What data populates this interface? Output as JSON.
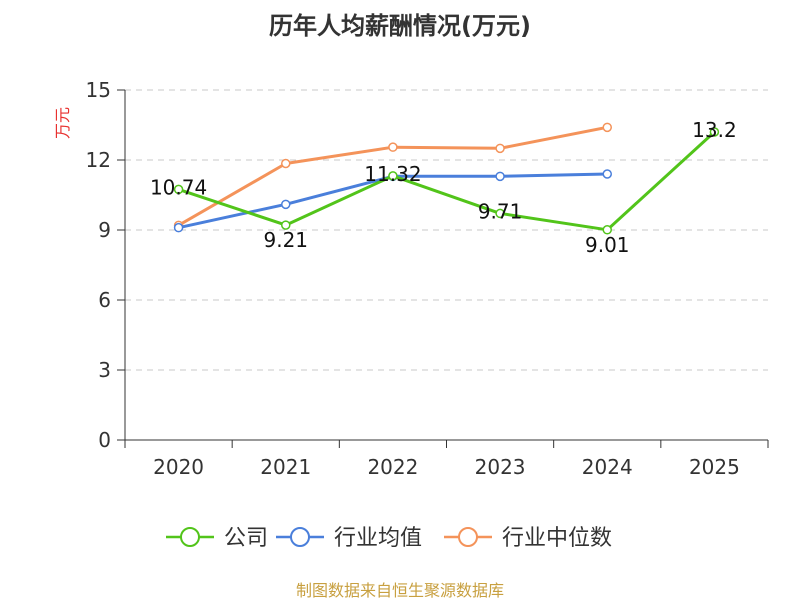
{
  "chart_data": {
    "type": "line",
    "title": "历年人均薪酬情况(万元)",
    "ylabel": "万元",
    "x": [
      "2020",
      "2021",
      "2022",
      "2023",
      "2024",
      "2025"
    ],
    "ylim": [
      0,
      15
    ],
    "yticks": [
      0,
      3,
      6,
      9,
      12,
      15
    ],
    "grid": true,
    "legend_position": "bottom",
    "series": [
      {
        "name": "公司",
        "color": "#52c41a",
        "values": [
          10.74,
          9.21,
          11.32,
          9.71,
          9.01,
          13.2
        ],
        "labels": [
          "10.74",
          "9.21",
          "11.32",
          "9.71",
          "9.01",
          "13.2"
        ]
      },
      {
        "name": "行业均值",
        "color": "#4a7fdb",
        "values": [
          9.1,
          10.1,
          11.3,
          11.3,
          11.4,
          null
        ]
      },
      {
        "name": "行业中位数",
        "color": "#f4935a",
        "values": [
          9.2,
          11.85,
          12.55,
          12.5,
          13.4,
          null
        ]
      }
    ]
  },
  "footer": {
    "source": "制图数据来自恒生聚源数据库"
  }
}
